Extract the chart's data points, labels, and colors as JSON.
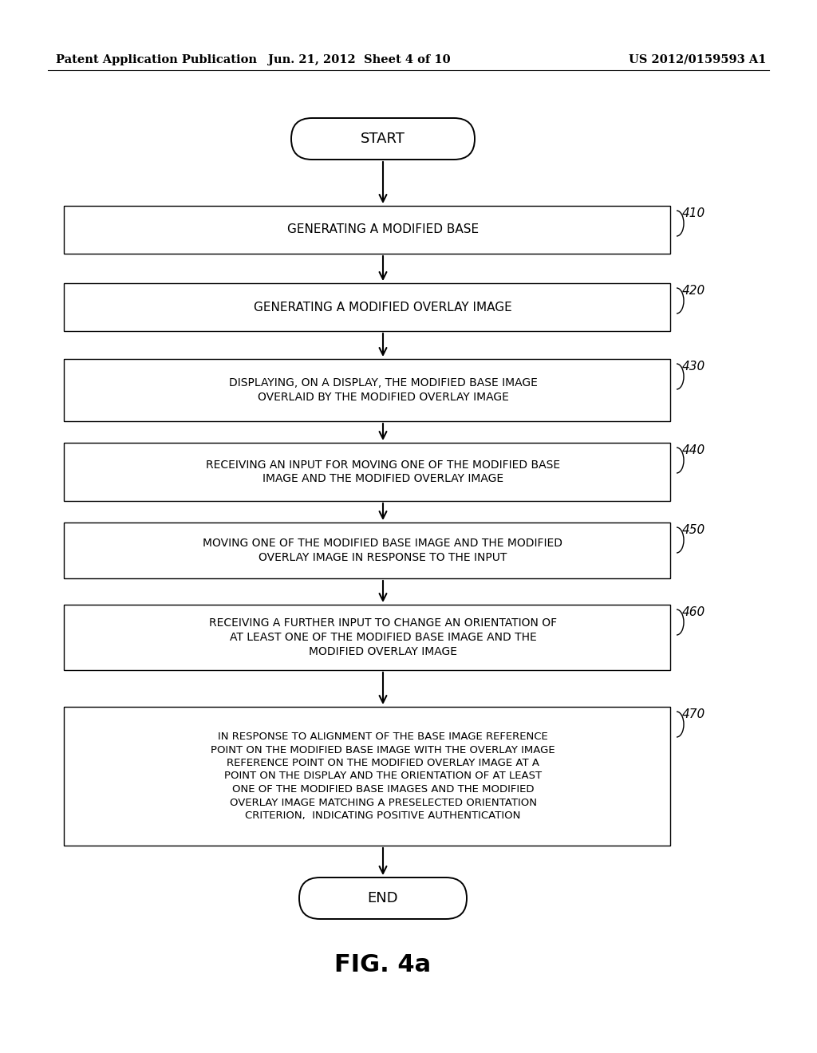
{
  "header_left": "Patent Application Publication",
  "header_mid": "Jun. 21, 2012  Sheet 4 of 10",
  "header_right": "US 2012/0159593 A1",
  "caption": "FIG. 4a",
  "start_label": "START",
  "end_label": "END",
  "boxes": [
    {
      "id": "410",
      "label": "GENERATING A MODIFIED BASE"
    },
    {
      "id": "420",
      "label": "GENERATING A MODIFIED OVERLAY IMAGE"
    },
    {
      "id": "430",
      "label": "DISPLAYING, ON A DISPLAY, THE MODIFIED BASE IMAGE\nOVERLAID BY THE MODIFIED OVERLAY IMAGE"
    },
    {
      "id": "440",
      "label": "RECEIVING AN INPUT FOR MOVING ONE OF THE MODIFIED BASE\nIMAGE AND THE MODIFIED OVERLAY IMAGE"
    },
    {
      "id": "450",
      "label": "MOVING ONE OF THE MODIFIED BASE IMAGE AND THE MODIFIED\nOVERLAY IMAGE IN RESPONSE TO THE INPUT"
    },
    {
      "id": "460",
      "label": "RECEIVING A FURTHER INPUT TO CHANGE AN ORIENTATION OF\nAT LEAST ONE OF THE MODIFIED BASE IMAGE AND THE\nMODIFIED OVERLAY IMAGE"
    },
    {
      "id": "470",
      "label": "IN RESPONSE TO ALIGNMENT OF THE BASE IMAGE REFERENCE\nPOINT ON THE MODIFIED BASE IMAGE WITH THE OVERLAY IMAGE\nREFERENCE POINT ON THE MODIFIED OVERLAY IMAGE AT A\nPOINT ON THE DISPLAY AND THE ORIENTATION OF AT LEAST\nONE OF THE MODIFIED BASE IMAGES AND THE MODIFIED\nOVERLAY IMAGE MATCHING A PRESELECTED ORIENTATION\nCRITERION,  INDICATING POSITIVE AUTHENTICATION"
    }
  ],
  "bg_color": "#ffffff",
  "box_edge_color": "#000000",
  "text_color": "#000000",
  "arrow_color": "#000000"
}
